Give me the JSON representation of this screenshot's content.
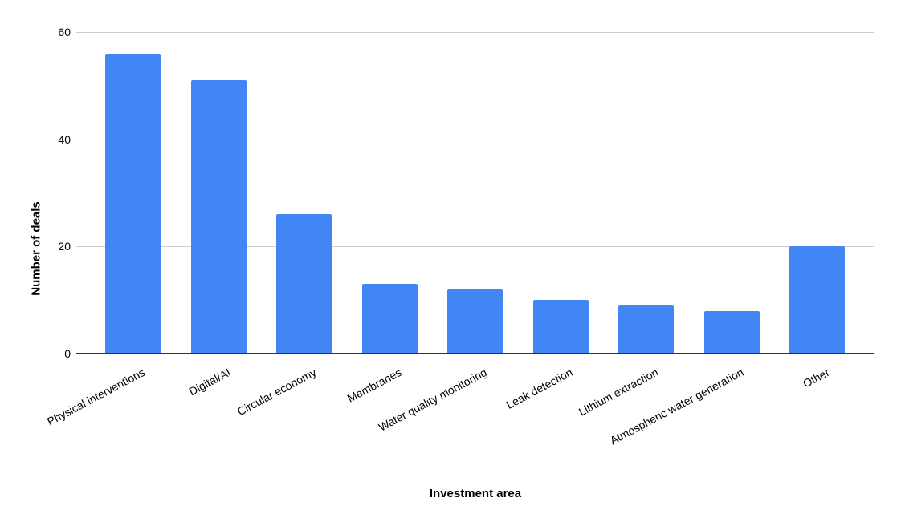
{
  "chart_data": {
    "type": "bar",
    "title": "",
    "categories": [
      "Physical interventions",
      "Digital/AI",
      "Circular economy",
      "Membranes",
      "Water quality monitoring",
      "Leak detection",
      "Lithium extraction",
      "Atmospheric water generation",
      "Other"
    ],
    "values": [
      56,
      51,
      26,
      13,
      12,
      10,
      9,
      8,
      20
    ],
    "xlabel": "Investment area",
    "ylabel": "Number of deals",
    "ylim": [
      0,
      60
    ],
    "yticks": [
      0,
      20,
      40,
      60
    ],
    "grid": true,
    "legend": "none",
    "series_color": "#4285f4"
  },
  "colors": {
    "bar": "#4285f4",
    "gridline": "#cccccc",
    "baseline": "#333333",
    "text": "#000000",
    "background": "#ffffff"
  }
}
